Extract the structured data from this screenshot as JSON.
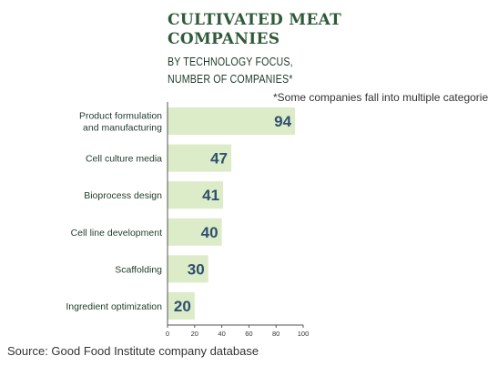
{
  "title_line1": "CULTIVATED MEAT",
  "title_line2": "COMPANIES",
  "subtitle_line1": "BY TECHNOLOGY FOCUS,",
  "subtitle_line2": "NUMBER OF COMPANIES*",
  "footnote": "*Some companies fall into multiple categories",
  "source": "Source: Good Food Institute company database",
  "colors": {
    "bar": "#dcebc8",
    "value": "#2f4f6f",
    "title": "#2f5a38"
  },
  "chart_data": {
    "type": "bar",
    "orientation": "horizontal",
    "categories": [
      [
        "Product formulation",
        "and manufacturing"
      ],
      [
        "Cell culture media"
      ],
      [
        "Bioprocess design"
      ],
      [
        "Cell line development"
      ],
      [
        "Scaffolding"
      ],
      [
        "Ingredient optimization"
      ]
    ],
    "values": [
      94,
      47,
      41,
      40,
      30,
      20
    ],
    "xlim": [
      0,
      100
    ],
    "xticks": [
      "0",
      "20",
      "40",
      "60",
      "80",
      "100"
    ],
    "grid": false
  }
}
